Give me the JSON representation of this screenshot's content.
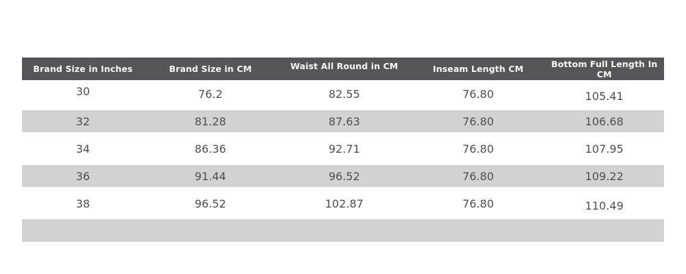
{
  "table": {
    "columns": [
      {
        "label": "Brand Size in Inches"
      },
      {
        "label": "Brand Size in CM"
      },
      {
        "label": "Waist All Round in CM"
      },
      {
        "label": "Inseam Length CM"
      },
      {
        "label": "Bottom Full Length In CM"
      }
    ],
    "rows": [
      [
        "30",
        "76.2",
        "82.55",
        "76.80",
        "105.41"
      ],
      [
        "32",
        "81.28",
        "87.63",
        "76.80",
        "106.68"
      ],
      [
        "34",
        "86.36",
        "92.71",
        "76.80",
        "107.95"
      ],
      [
        "36",
        "91.44",
        "96.52",
        "76.80",
        "109.22"
      ],
      [
        "38",
        "96.52",
        "102.87",
        "76.80",
        "110.49"
      ]
    ],
    "footer_row": ""
  },
  "colors": {
    "header_bg": "#565659",
    "header_text": "#f7f7f7",
    "stripe_bg": "#d2d2d2",
    "body_text": "#4e4e4e",
    "page_bg": "#ffffff"
  }
}
